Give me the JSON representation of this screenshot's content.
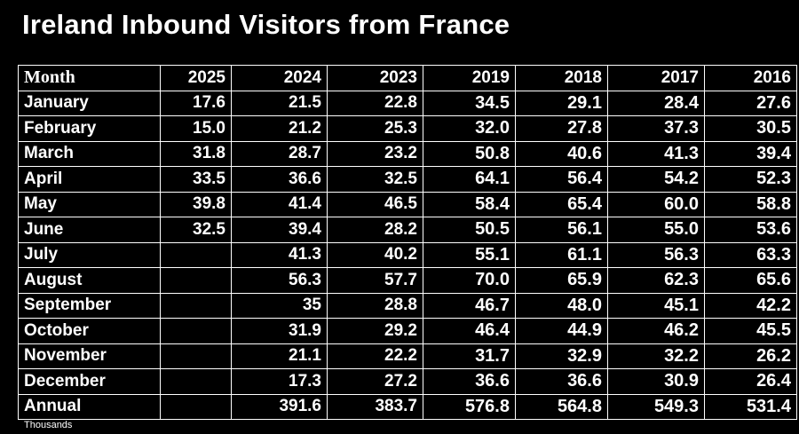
{
  "title": "Ireland Inbound Visitors from France",
  "footnote": "Thousands",
  "chart_data": {
    "type": "table",
    "title": "Ireland Inbound Visitors from France",
    "header": [
      "Month",
      "2025",
      "2024",
      "2023",
      "2019",
      "2018",
      "2017",
      "2016"
    ],
    "rows": [
      [
        "January",
        "17.6",
        "21.5",
        "22.8",
        "34.5",
        "29.1",
        "28.4",
        "27.6"
      ],
      [
        "February",
        "15.0",
        "21.2",
        "25.3",
        "32.0",
        "27.8",
        "37.3",
        "30.5"
      ],
      [
        "March",
        "31.8",
        "28.7",
        "23.2",
        "50.8",
        "40.6",
        "41.3",
        "39.4"
      ],
      [
        "April",
        "33.5",
        "36.6",
        "32.5",
        "64.1",
        "56.4",
        "54.2",
        "52.3"
      ],
      [
        "May",
        "39.8",
        "41.4",
        "46.5",
        "58.4",
        "65.4",
        "60.0",
        "58.8"
      ],
      [
        "June",
        "32.5",
        "39.4",
        "28.2",
        "50.5",
        "56.1",
        "55.0",
        "53.6"
      ],
      [
        "July",
        "",
        "41.3",
        "40.2",
        "55.1",
        "61.1",
        "56.3",
        "63.3"
      ],
      [
        "August",
        "",
        "56.3",
        "57.7",
        "70.0",
        "65.9",
        "62.3",
        "65.6"
      ],
      [
        "September",
        "",
        "35",
        "28.8",
        "46.7",
        "48.0",
        "45.1",
        "42.2"
      ],
      [
        "October",
        "",
        "31.9",
        "29.2",
        "46.4",
        "44.9",
        "46.2",
        "45.5"
      ],
      [
        "November",
        "",
        "21.1",
        "22.2",
        "31.7",
        "32.9",
        "32.2",
        "26.2"
      ],
      [
        "December",
        "",
        "17.3",
        "27.2",
        "36.6",
        "36.6",
        "30.9",
        "26.4"
      ],
      [
        "Annual",
        "",
        "391.6",
        "383.7",
        "576.8",
        "564.8",
        "549.3",
        "531.4"
      ]
    ],
    "unit": "Thousands"
  }
}
